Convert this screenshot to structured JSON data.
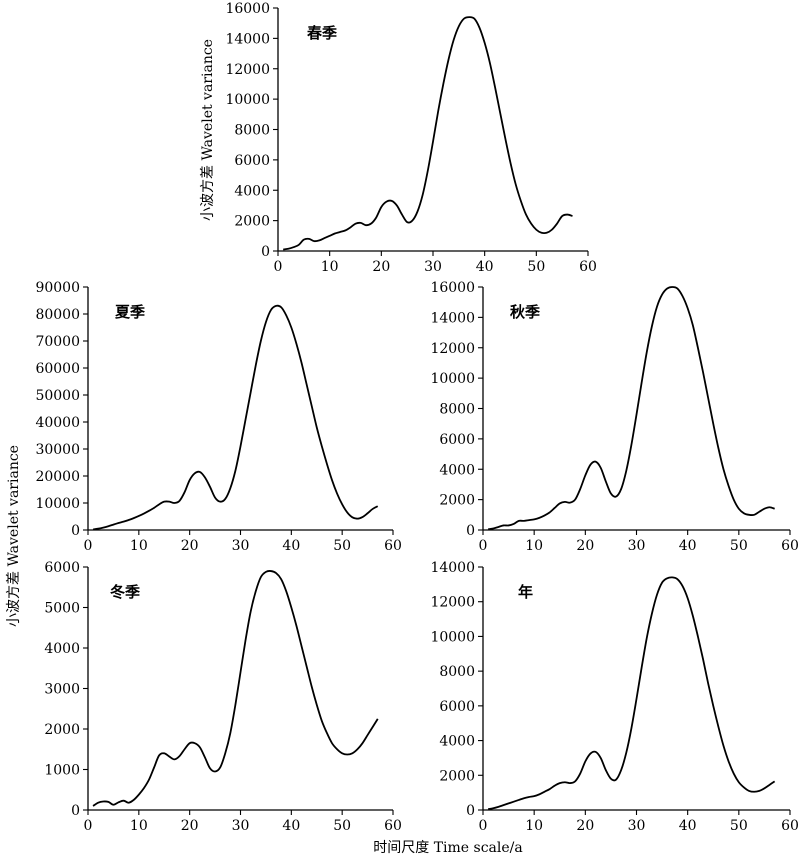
{
  "ylabel": "小波方差 Wavelet variance",
  "xlabel": "时间尺度 Time scale/a",
  "chart_data": [
    {
      "type": "line",
      "title": "春季",
      "xlim": [
        0,
        60
      ],
      "ylim": [
        0,
        16000
      ],
      "xticks": [
        0,
        10,
        20,
        30,
        40,
        50,
        60
      ],
      "yticks": [
        0,
        2000,
        4000,
        6000,
        8000,
        10000,
        12000,
        14000,
        16000
      ],
      "x": [
        1,
        2,
        3,
        4,
        5,
        6,
        7,
        8,
        9,
        10,
        11,
        12,
        13,
        14,
        15,
        16,
        17,
        18,
        19,
        20,
        21,
        22,
        23,
        24,
        25,
        26,
        27,
        28,
        29,
        30,
        31,
        32,
        33,
        34,
        35,
        36,
        37,
        38,
        39,
        40,
        41,
        42,
        43,
        44,
        45,
        46,
        47,
        48,
        49,
        50,
        51,
        52,
        53,
        54,
        55,
        56,
        57
      ],
      "y": [
        100,
        150,
        250,
        400,
        750,
        800,
        650,
        700,
        850,
        1000,
        1150,
        1250,
        1350,
        1550,
        1800,
        1850,
        1700,
        1800,
        2200,
        2900,
        3250,
        3300,
        3000,
        2400,
        1900,
        2000,
        2600,
        3700,
        5300,
        7200,
        9200,
        11000,
        12600,
        13900,
        14800,
        15300,
        15400,
        15300,
        14700,
        13700,
        12400,
        10800,
        9100,
        7400,
        5800,
        4400,
        3300,
        2400,
        1800,
        1400,
        1200,
        1200,
        1400,
        1800,
        2300,
        2400,
        2300
      ]
    },
    {
      "type": "line",
      "title": "夏季",
      "xlim": [
        0,
        60
      ],
      "ylim": [
        0,
        90000
      ],
      "xticks": [
        0,
        10,
        20,
        30,
        40,
        50,
        60
      ],
      "yticks": [
        0,
        10000,
        20000,
        30000,
        40000,
        50000,
        60000,
        70000,
        80000,
        90000
      ],
      "x": [
        1,
        2,
        3,
        4,
        5,
        6,
        7,
        8,
        9,
        10,
        11,
        12,
        13,
        14,
        15,
        16,
        17,
        18,
        19,
        20,
        21,
        22,
        23,
        24,
        25,
        26,
        27,
        28,
        29,
        30,
        31,
        32,
        33,
        34,
        35,
        36,
        37,
        38,
        39,
        40,
        41,
        42,
        43,
        44,
        45,
        46,
        47,
        48,
        49,
        50,
        51,
        52,
        53,
        54,
        55,
        56,
        57
      ],
      "y": [
        200,
        500,
        900,
        1400,
        2000,
        2600,
        3100,
        3700,
        4400,
        5200,
        6100,
        7100,
        8200,
        9500,
        10500,
        10500,
        10000,
        10800,
        14000,
        18500,
        21000,
        21500,
        19500,
        16000,
        12000,
        10500,
        11500,
        15500,
        22000,
        31000,
        41000,
        51000,
        61000,
        70000,
        77000,
        81500,
        83000,
        82500,
        79500,
        75000,
        69000,
        62000,
        54000,
        46000,
        38000,
        31000,
        24500,
        18500,
        13500,
        9500,
        6500,
        4700,
        4200,
        4800,
        6200,
        7800,
        8800
      ]
    },
    {
      "type": "line",
      "title": "秋季",
      "xlim": [
        0,
        60
      ],
      "ylim": [
        0,
        16000
      ],
      "xticks": [
        0,
        10,
        20,
        30,
        40,
        50,
        60
      ],
      "yticks": [
        0,
        2000,
        4000,
        6000,
        8000,
        10000,
        12000,
        14000,
        16000
      ],
      "x": [
        1,
        2,
        3,
        4,
        5,
        6,
        7,
        8,
        9,
        10,
        11,
        12,
        13,
        14,
        15,
        16,
        17,
        18,
        19,
        20,
        21,
        22,
        23,
        24,
        25,
        26,
        27,
        28,
        29,
        30,
        31,
        32,
        33,
        34,
        35,
        36,
        37,
        38,
        39,
        40,
        41,
        42,
        43,
        44,
        45,
        46,
        47,
        48,
        49,
        50,
        51,
        52,
        53,
        54,
        55,
        56,
        57
      ],
      "y": [
        50,
        100,
        200,
        300,
        300,
        400,
        600,
        600,
        650,
        700,
        800,
        950,
        1150,
        1450,
        1750,
        1850,
        1800,
        2000,
        2700,
        3600,
        4300,
        4500,
        4100,
        3200,
        2400,
        2200,
        2700,
        3900,
        5600,
        7600,
        9700,
        11700,
        13400,
        14700,
        15500,
        15900,
        16000,
        15900,
        15400,
        14600,
        13500,
        12000,
        10400,
        8700,
        7000,
        5400,
        4000,
        2900,
        2000,
        1400,
        1100,
        1000,
        1000,
        1200,
        1400,
        1500,
        1400
      ]
    },
    {
      "type": "line",
      "title": "冬季",
      "xlim": [
        0,
        60
      ],
      "ylim": [
        0,
        6000
      ],
      "xticks": [
        0,
        10,
        20,
        30,
        40,
        50,
        60
      ],
      "yticks": [
        0,
        1000,
        2000,
        3000,
        4000,
        5000,
        6000
      ],
      "x": [
        1,
        2,
        3,
        4,
        5,
        6,
        7,
        8,
        9,
        10,
        11,
        12,
        13,
        14,
        15,
        16,
        17,
        18,
        19,
        20,
        21,
        22,
        23,
        24,
        25,
        26,
        27,
        28,
        29,
        30,
        31,
        32,
        33,
        34,
        35,
        36,
        37,
        38,
        39,
        40,
        41,
        42,
        43,
        44,
        45,
        46,
        47,
        48,
        49,
        50,
        51,
        52,
        53,
        54,
        55,
        56,
        57
      ],
      "y": [
        100,
        180,
        210,
        200,
        130,
        190,
        230,
        180,
        250,
        380,
        540,
        750,
        1050,
        1350,
        1400,
        1320,
        1250,
        1330,
        1500,
        1650,
        1650,
        1550,
        1300,
        1030,
        950,
        1050,
        1400,
        1900,
        2600,
        3400,
        4200,
        4900,
        5400,
        5750,
        5880,
        5900,
        5850,
        5700,
        5400,
        5000,
        4550,
        4050,
        3550,
        3050,
        2600,
        2200,
        1900,
        1650,
        1500,
        1400,
        1370,
        1400,
        1500,
        1650,
        1850,
        2050,
        2250
      ]
    },
    {
      "type": "line",
      "title": "年",
      "xlim": [
        0,
        60
      ],
      "ylim": [
        0,
        14000
      ],
      "xticks": [
        0,
        10,
        20,
        30,
        40,
        50,
        60
      ],
      "yticks": [
        0,
        2000,
        4000,
        6000,
        8000,
        10000,
        12000,
        14000
      ],
      "x": [
        1,
        2,
        3,
        4,
        5,
        6,
        7,
        8,
        9,
        10,
        11,
        12,
        13,
        14,
        15,
        16,
        17,
        18,
        19,
        20,
        21,
        22,
        23,
        24,
        25,
        26,
        27,
        28,
        29,
        30,
        31,
        32,
        33,
        34,
        35,
        36,
        37,
        38,
        39,
        40,
        41,
        42,
        43,
        44,
        45,
        46,
        47,
        48,
        49,
        50,
        51,
        52,
        53,
        54,
        55,
        56,
        57
      ],
      "y": [
        50,
        100,
        180,
        280,
        380,
        480,
        580,
        680,
        750,
        800,
        900,
        1050,
        1200,
        1400,
        1550,
        1600,
        1550,
        1650,
        2100,
        2800,
        3250,
        3350,
        3000,
        2300,
        1800,
        1750,
        2300,
        3300,
        4700,
        6400,
        8200,
        9900,
        11300,
        12400,
        13100,
        13350,
        13400,
        13300,
        12900,
        12200,
        11200,
        10000,
        8700,
        7300,
        6000,
        4800,
        3700,
        2800,
        2100,
        1600,
        1300,
        1100,
        1050,
        1100,
        1250,
        1450,
        1650
      ]
    }
  ]
}
